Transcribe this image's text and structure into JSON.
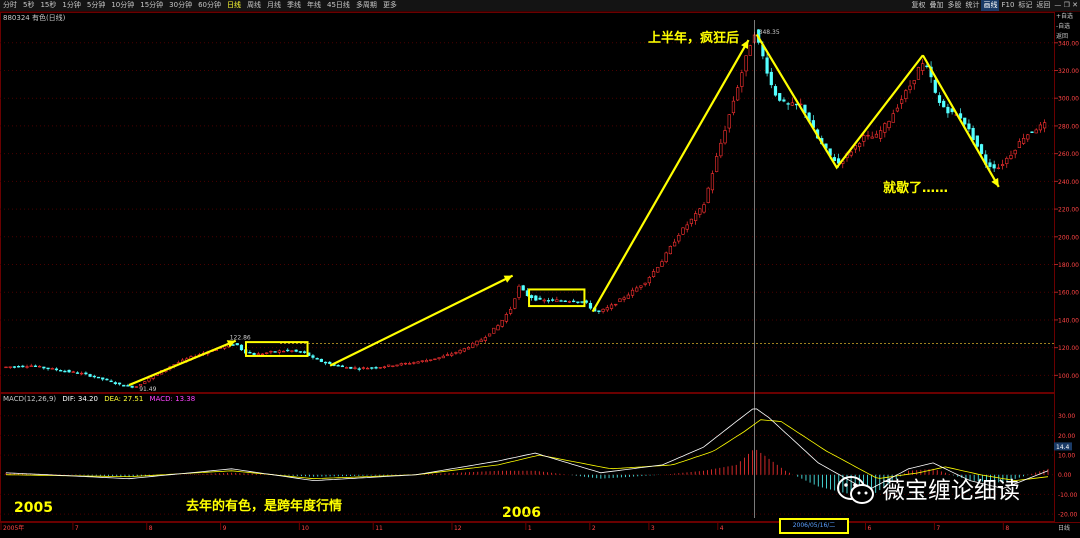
{
  "toolbar": {
    "periods": [
      "分时",
      "5秒",
      "15秒",
      "1分钟",
      "5分钟",
      "10分钟",
      "15分钟",
      "30分钟",
      "60分钟",
      "日线",
      "周线",
      "月线",
      "季线",
      "年线",
      "45日线",
      "多周期",
      "更多"
    ],
    "active_period": "日线",
    "right_buttons": [
      "复权",
      "叠加",
      "多股",
      "统计",
      "画线",
      "F10",
      "标记",
      "返回"
    ],
    "active_right": "画线",
    "window_controls": "— ❐ ✕"
  },
  "instrument": {
    "code_line": "880324 有色(日线)"
  },
  "side_menu": [
    "+自选",
    "-自选",
    "返回"
  ],
  "colors": {
    "up": "#ff3232",
    "down": "#54ffff",
    "annotation": "#ffff00",
    "grid": "#4a0000",
    "dif": "#ffffff",
    "dea": "#ffff00",
    "macd": "#ff00ff"
  },
  "macd_legend": {
    "name": "MACD(12,26,9)",
    "dif": "DIF: 34.20",
    "dea": "DEA: 27.51",
    "macd": "MACD: 13.38"
  },
  "annotations": {
    "first_half": "上半年，疯狂后",
    "exhausted": "就歇了……",
    "last_year": "去年的有色，是跨年度行情",
    "year_2005": "2005",
    "year_2006": "2006",
    "peak_label": "348.35",
    "high_2005_label": "122.86",
    "low_label": "91.49"
  },
  "date_badge": "2006/05/16/二",
  "watermark": {
    "text": "薇宝缠论细读",
    "icon": "wechat-icon"
  },
  "x_axis": {
    "labels": [
      "2005年",
      "7",
      "8",
      "9",
      "10",
      "11",
      "12",
      "1",
      "2",
      "3",
      "4",
      "5",
      "6",
      "7",
      "8"
    ],
    "period_label": "日线"
  },
  "chart_data": [
    {
      "type": "candlestick",
      "title": "880324 有色(日线)",
      "xlabel": "",
      "ylabel": "",
      "ylim": [
        88,
        355
      ],
      "y_ticks": [
        100,
        120,
        140,
        160,
        180,
        200,
        220,
        240,
        260,
        280,
        300,
        320,
        340
      ],
      "y_tick_labels": [
        "100.00",
        "120.00",
        "140.00",
        "160.00",
        "180.00",
        "200.00",
        "220.00",
        "240.00",
        "260.00",
        "280.00",
        "300.00",
        "320.00",
        "340.00"
      ],
      "reference_line": 122.86,
      "price_path": [
        [
          0,
          106
        ],
        [
          12,
          107
        ],
        [
          25,
          104
        ],
        [
          38,
          101
        ],
        [
          48,
          97
        ],
        [
          56,
          93
        ],
        [
          63,
          91.5
        ],
        [
          72,
          100
        ],
        [
          82,
          108
        ],
        [
          92,
          114
        ],
        [
          102,
          119
        ],
        [
          112,
          123
        ],
        [
          116,
          117
        ],
        [
          122,
          115
        ],
        [
          130,
          117
        ],
        [
          138,
          118
        ],
        [
          146,
          116
        ],
        [
          150,
          112
        ],
        [
          156,
          109
        ],
        [
          164,
          106
        ],
        [
          172,
          105
        ],
        [
          182,
          106
        ],
        [
          192,
          108
        ],
        [
          202,
          110
        ],
        [
          212,
          113
        ],
        [
          222,
          118
        ],
        [
          232,
          126
        ],
        [
          240,
          136
        ],
        [
          246,
          148
        ],
        [
          250,
          164
        ],
        [
          254,
          158
        ],
        [
          260,
          154
        ],
        [
          268,
          154
        ],
        [
          276,
          154
        ],
        [
          282,
          153
        ],
        [
          288,
          145
        ],
        [
          294,
          149
        ],
        [
          302,
          157
        ],
        [
          312,
          168
        ],
        [
          320,
          183
        ],
        [
          328,
          202
        ],
        [
          334,
          212
        ],
        [
          340,
          222
        ],
        [
          346,
          255
        ],
        [
          352,
          285
        ],
        [
          358,
          315
        ],
        [
          363,
          340
        ],
        [
          365,
          348
        ],
        [
          369,
          330
        ],
        [
          374,
          305
        ],
        [
          380,
          295
        ],
        [
          388,
          295
        ],
        [
          396,
          270
        ],
        [
          402,
          258
        ],
        [
          406,
          253
        ],
        [
          412,
          262
        ],
        [
          418,
          272
        ],
        [
          424,
          272
        ],
        [
          430,
          283
        ],
        [
          436,
          298
        ],
        [
          442,
          312
        ],
        [
          446,
          325
        ],
        [
          450,
          320
        ],
        [
          454,
          298
        ],
        [
          460,
          290
        ],
        [
          466,
          286
        ],
        [
          472,
          270
        ],
        [
          478,
          252
        ],
        [
          484,
          250
        ],
        [
          490,
          260
        ],
        [
          496,
          272
        ],
        [
          502,
          278
        ],
        [
          508,
          282
        ]
      ],
      "x_count": 508
    },
    {
      "type": "macd",
      "title": "MACD(12,26,9)",
      "xlabel": "",
      "ylabel": "",
      "ylim": [
        -22,
        38
      ],
      "y_ticks": [
        -20,
        -10,
        0,
        10,
        20,
        30
      ],
      "y_tick_labels": [
        "-20.00",
        "-10.00",
        "0.00",
        "10.00",
        "20.00",
        "30.00"
      ],
      "current_value_label": "14.4",
      "dif_path": [
        [
          0,
          1
        ],
        [
          60,
          -2
        ],
        [
          110,
          3
        ],
        [
          150,
          -3
        ],
        [
          200,
          0
        ],
        [
          240,
          7
        ],
        [
          258,
          11
        ],
        [
          290,
          1
        ],
        [
          320,
          5
        ],
        [
          340,
          14
        ],
        [
          356,
          27
        ],
        [
          365,
          34.2
        ],
        [
          372,
          29
        ],
        [
          396,
          6
        ],
        [
          420,
          -8
        ],
        [
          440,
          3
        ],
        [
          452,
          6
        ],
        [
          470,
          -3
        ],
        [
          486,
          -7
        ],
        [
          508,
          2
        ]
      ],
      "dea_path": [
        [
          0,
          0
        ],
        [
          60,
          -1
        ],
        [
          110,
          2
        ],
        [
          150,
          -2
        ],
        [
          200,
          0
        ],
        [
          240,
          5
        ],
        [
          260,
          10
        ],
        [
          295,
          3
        ],
        [
          325,
          5
        ],
        [
          345,
          12
        ],
        [
          360,
          22
        ],
        [
          368,
          28
        ],
        [
          378,
          27
        ],
        [
          400,
          12
        ],
        [
          425,
          -2
        ],
        [
          445,
          1
        ],
        [
          458,
          4
        ],
        [
          475,
          0
        ],
        [
          492,
          -3
        ],
        [
          508,
          -1
        ]
      ],
      "macd_bars": [
        [
          0,
          1
        ],
        [
          60,
          -1
        ],
        [
          110,
          1
        ],
        [
          150,
          -1
        ],
        [
          200,
          0
        ],
        [
          240,
          2
        ],
        [
          258,
          2
        ],
        [
          290,
          -2
        ],
        [
          320,
          0
        ],
        [
          340,
          2
        ],
        [
          356,
          5
        ],
        [
          365,
          13.38
        ],
        [
          380,
          2
        ],
        [
          396,
          -6
        ],
        [
          420,
          -12
        ],
        [
          440,
          2
        ],
        [
          452,
          3
        ],
        [
          470,
          -3
        ],
        [
          486,
          -4
        ],
        [
          508,
          3
        ]
      ]
    }
  ]
}
